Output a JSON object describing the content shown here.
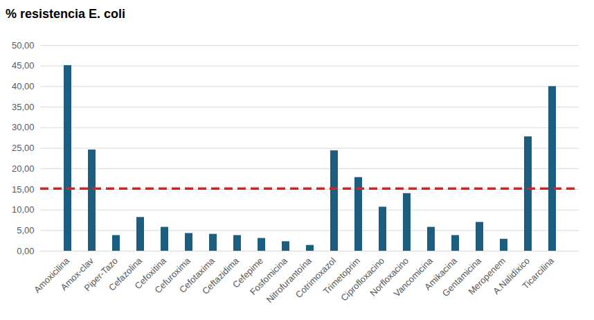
{
  "chart_data": {
    "type": "bar",
    "title": "% resistencia E. coli",
    "categories": [
      "Amoxicilina",
      "Amox-clav",
      "Piper-Tazo",
      "Cefazolina",
      "Cefoxitina",
      "Cefuroxima",
      "Cefotaxima",
      "Ceftazidima",
      "Cefepime",
      "Fosfomicina",
      "Nitrofurantoína",
      "Cotrimoxazol",
      "Trimetoprim",
      "Ciprofloxacino",
      "Norfloxacino",
      "Vancomicina",
      "Amikacina",
      "Gentamicina",
      "Meropenem",
      "A.Nalidíxico",
      "Ticarcilina"
    ],
    "values": [
      45.1,
      24.6,
      3.8,
      8.2,
      5.8,
      4.3,
      4.1,
      3.8,
      3.1,
      2.3,
      1.4,
      24.4,
      17.9,
      10.7,
      14.0,
      5.8,
      3.8,
      7.0,
      2.9,
      27.8,
      40.0
    ],
    "color": "#1b5e80",
    "ylim": [
      0,
      50
    ],
    "yticks": [
      {
        "value": 0,
        "label": "0,00"
      },
      {
        "value": 5,
        "label": "5,00"
      },
      {
        "value": 10,
        "label": "10,00"
      },
      {
        "value": 15,
        "label": "15,00"
      },
      {
        "value": 20,
        "label": "20,00"
      },
      {
        "value": 25,
        "label": "25,00"
      },
      {
        "value": 30,
        "label": "30,00"
      },
      {
        "value": 35,
        "label": "35,00"
      },
      {
        "value": 40,
        "label": "40,00"
      },
      {
        "value": 45,
        "label": "45,00"
      },
      {
        "value": 50,
        "label": "50,00"
      }
    ],
    "grid": true,
    "reference_line": {
      "value": 15.2,
      "color": "#e02020",
      "line_style": "dashed"
    }
  }
}
